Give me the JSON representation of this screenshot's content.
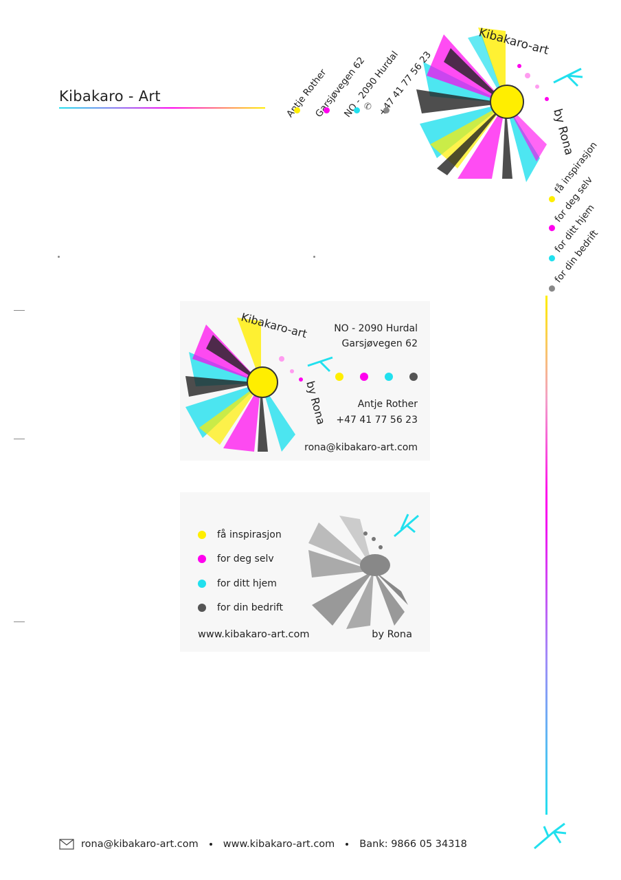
{
  "header": {
    "title": "Kibakaro - Art"
  },
  "colors": {
    "yellow": "#ffee00",
    "magenta": "#ff00ee",
    "cyan": "#21e0ee",
    "gray": "#888888"
  },
  "rotated_address": {
    "lines": [
      "Antje Rother",
      "Garsjøvegen 62",
      "NO - 2090 Hurdal",
      "+47 41 77 56 23"
    ]
  },
  "logo": {
    "brand": "Kibakaro-art",
    "by": "by Rona"
  },
  "slogans": [
    "få inspirasjon",
    "for deg selv",
    "for ditt hjem",
    "for din bedrift"
  ],
  "card1": {
    "brand": "Kibakaro-art",
    "by": "by Rona",
    "address1": "NO - 2090 Hurdal",
    "address2": "Garsjøvegen 62",
    "name": "Antje Rother",
    "phone": "+47 41 77 56 23",
    "email": "rona@kibakaro-art.com"
  },
  "card2": {
    "items": [
      "få inspirasjon",
      "for deg selv",
      "for ditt hjem",
      "for din bedrift"
    ],
    "website": "www.kibakaro-art.com",
    "by": "by Rona"
  },
  "footer": {
    "email": "rona@kibakaro-art.com",
    "website": "www.kibakaro-art.com",
    "bank": "Bank: 9866 05 34318"
  }
}
